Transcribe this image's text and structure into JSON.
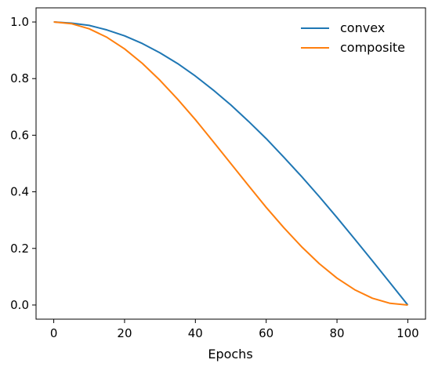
{
  "chart_data": {
    "type": "line",
    "title": "",
    "xlabel": "Epochs",
    "ylabel": "",
    "xlim": [
      -5,
      105
    ],
    "ylim": [
      -0.05,
      1.05
    ],
    "xticks": [
      0,
      20,
      40,
      60,
      80,
      100
    ],
    "yticks": [
      0.0,
      0.2,
      0.4,
      0.6,
      0.8,
      1.0
    ],
    "xtick_labels": [
      "0",
      "20",
      "40",
      "60",
      "80",
      "100"
    ],
    "ytick_labels": [
      "0.0",
      "0.2",
      "0.4",
      "0.6",
      "0.8",
      "1.0"
    ],
    "grid": false,
    "legend_position": "top-right",
    "x": [
      0,
      5,
      10,
      15,
      20,
      25,
      30,
      35,
      40,
      45,
      50,
      55,
      60,
      65,
      70,
      75,
      80,
      85,
      90,
      95,
      100
    ],
    "series": [
      {
        "name": "convex",
        "color": "#1f77b4",
        "values": [
          1.0,
          0.996,
          0.988,
          0.972,
          0.951,
          0.924,
          0.891,
          0.853,
          0.809,
          0.76,
          0.707,
          0.649,
          0.588,
          0.522,
          0.454,
          0.383,
          0.309,
          0.233,
          0.156,
          0.078,
          0.0
        ]
      },
      {
        "name": "composite",
        "color": "#ff7f0e",
        "values": [
          1.0,
          0.994,
          0.976,
          0.946,
          0.905,
          0.854,
          0.794,
          0.727,
          0.655,
          0.578,
          0.5,
          0.422,
          0.345,
          0.273,
          0.206,
          0.146,
          0.095,
          0.054,
          0.024,
          0.006,
          0.0
        ]
      }
    ]
  }
}
